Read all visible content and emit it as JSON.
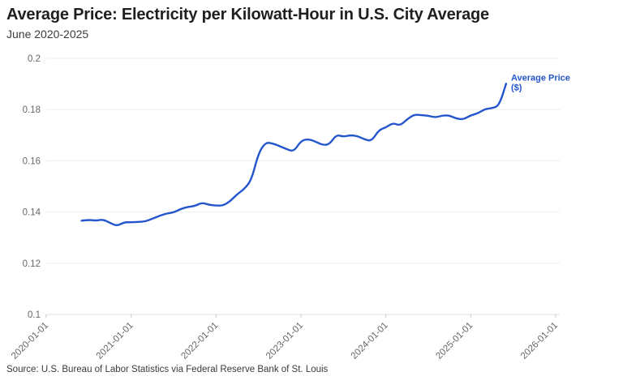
{
  "header": {
    "title": "Average Price: Electricity per Kilowatt-Hour in U.S. City Average",
    "subtitle": "June 2020-2025"
  },
  "source": "Source: U.S. Bureau of Labor Statistics via Federal Reserve Bank of St. Louis",
  "colors": {
    "line": "#2355cc",
    "title_text": "#1f1f1f",
    "subtitle_text": "#3d3d3d",
    "axis_text": "#666666",
    "gridline": "#ededed",
    "axis_line": "#e0e0e0",
    "tick_mark": "#c9c9c9",
    "background": "#ffffff"
  },
  "chart_data": {
    "type": "line",
    "title": "Average Price: Electricity per Kilowatt-Hour in U.S. City Average",
    "subtitle": "June 2020-2025",
    "xlabel": "",
    "ylabel": "",
    "ylim": [
      0.1,
      0.2
    ],
    "y_ticks": [
      0.1,
      0.12,
      0.14,
      0.16,
      0.18,
      0.2
    ],
    "y_tick_labels": [
      "0.1",
      "0.12",
      "0.14",
      "0.16",
      "0.18",
      "0.2"
    ],
    "x_tick_labels": [
      "2020-01-01",
      "2021-01-01",
      "2022-01-01",
      "2023-01-01",
      "2024-01-01",
      "2025-01-01",
      "2026-01-01"
    ],
    "grid": "horizontal-only",
    "legend_position": "end-of-line",
    "series": [
      {
        "name": "Average Price ($)",
        "legend_lines": [
          "Average Price",
          "($)"
        ],
        "color": "#2355cc",
        "months": [
          "2020-06",
          "2020-07",
          "2020-08",
          "2020-09",
          "2020-10",
          "2020-11",
          "2020-12",
          "2021-01",
          "2021-02",
          "2021-03",
          "2021-04",
          "2021-05",
          "2021-06",
          "2021-07",
          "2021-08",
          "2021-09",
          "2021-10",
          "2021-11",
          "2021-12",
          "2022-01",
          "2022-02",
          "2022-03",
          "2022-04",
          "2022-05",
          "2022-06",
          "2022-07",
          "2022-08",
          "2022-09",
          "2022-10",
          "2022-11",
          "2022-12",
          "2023-01",
          "2023-02",
          "2023-03",
          "2023-04",
          "2023-05",
          "2023-06",
          "2023-07",
          "2023-08",
          "2023-09",
          "2023-10",
          "2023-11",
          "2023-12",
          "2024-01",
          "2024-02",
          "2024-03",
          "2024-04",
          "2024-05",
          "2024-06",
          "2024-07",
          "2024-08",
          "2024-09",
          "2024-10",
          "2024-11",
          "2024-12",
          "2025-01",
          "2025-02",
          "2025-03",
          "2025-04",
          "2025-05",
          "2025-06"
        ],
        "values": [
          0.1366,
          0.137,
          0.1366,
          0.1371,
          0.1358,
          0.1345,
          0.136,
          0.136,
          0.1361,
          0.1363,
          0.1374,
          0.1385,
          0.1394,
          0.1398,
          0.1412,
          0.142,
          0.1423,
          0.1437,
          0.1428,
          0.1425,
          0.1425,
          0.1442,
          0.147,
          0.149,
          0.1525,
          0.163,
          0.1672,
          0.1668,
          0.1657,
          0.1645,
          0.1636,
          0.1678,
          0.1685,
          0.1676,
          0.1662,
          0.1663,
          0.1702,
          0.1694,
          0.17,
          0.1697,
          0.1683,
          0.1677,
          0.172,
          0.173,
          0.1748,
          0.1737,
          0.1762,
          0.1781,
          0.1778,
          0.1776,
          0.1769,
          0.1777,
          0.1777,
          0.1764,
          0.1762,
          0.1778,
          0.1785,
          0.1802,
          0.1805,
          0.1815,
          0.1901
        ]
      }
    ]
  }
}
